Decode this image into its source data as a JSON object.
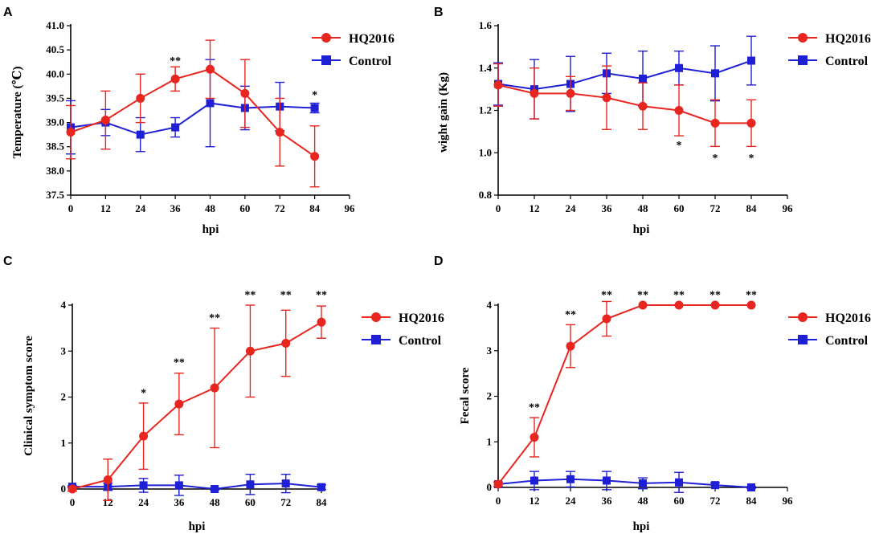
{
  "colors": {
    "hq2016": "#e8251f",
    "control": "#1f1fd6",
    "axis": "#000000"
  },
  "chart_data": [
    {
      "panel": "A",
      "type": "line",
      "title": "",
      "xlabel": "hpi",
      "ylabel": "Temperature (℃)",
      "xlim": [
        0,
        96
      ],
      "ylim": [
        37.5,
        41.0
      ],
      "xticks": [
        "0",
        "12",
        "24",
        "36",
        "48",
        "60",
        "72",
        "84",
        "96"
      ],
      "yticks": [
        "37.5",
        "38.0",
        "38.5",
        "39.0",
        "39.5",
        "40.0",
        "40.5",
        "41.0"
      ],
      "legend": "top-right",
      "series": [
        {
          "name": "HQ2016",
          "marker": "circle",
          "x": [
            0,
            12,
            24,
            36,
            48,
            60,
            72,
            84
          ],
          "values": [
            38.8,
            39.05,
            39.5,
            39.9,
            40.1,
            39.6,
            38.8,
            38.3
          ],
          "error": [
            0.55,
            0.6,
            0.5,
            0.25,
            0.6,
            0.7,
            0.7,
            0.63
          ]
        },
        {
          "name": "Control",
          "marker": "square",
          "x": [
            0,
            12,
            24,
            36,
            48,
            60,
            72,
            84
          ],
          "values": [
            38.9,
            39.0,
            38.75,
            38.9,
            39.4,
            39.3,
            39.33,
            39.3
          ],
          "error": [
            0.55,
            0.27,
            0.35,
            0.2,
            0.9,
            0.45,
            0.5,
            0.1
          ]
        }
      ],
      "annotations": [
        {
          "x": 36,
          "y": 40.2,
          "text": "**"
        },
        {
          "x": 84,
          "y": 39.5,
          "text": "*"
        }
      ]
    },
    {
      "panel": "B",
      "type": "line",
      "title": "",
      "xlabel": "hpi",
      "ylabel": "wight gain (Kg)",
      "xlim": [
        0,
        96
      ],
      "ylim": [
        0.8,
        1.6
      ],
      "xticks": [
        "0",
        "12",
        "24",
        "36",
        "48",
        "60",
        "72",
        "84",
        "96"
      ],
      "yticks": [
        "0.8",
        "1.0",
        "1.2",
        "1.4",
        "1.6"
      ],
      "legend": "top-right",
      "series": [
        {
          "name": "HQ2016",
          "marker": "circle",
          "x": [
            0,
            12,
            24,
            36,
            48,
            60,
            72,
            84
          ],
          "values": [
            1.32,
            1.28,
            1.28,
            1.26,
            1.22,
            1.2,
            1.14,
            1.14
          ],
          "error": [
            0.1,
            0.12,
            0.08,
            0.15,
            0.11,
            0.12,
            0.11,
            0.11
          ]
        },
        {
          "name": "Control",
          "marker": "square",
          "x": [
            0,
            12,
            24,
            36,
            48,
            60,
            72,
            84
          ],
          "values": [
            1.325,
            1.3,
            1.325,
            1.375,
            1.35,
            1.4,
            1.375,
            1.435
          ],
          "error": [
            0.1,
            0.14,
            0.13,
            0.095,
            0.13,
            0.08,
            0.13,
            0.115
          ]
        }
      ],
      "annotations": [
        {
          "x": 60,
          "y": 1.02,
          "text": "*"
        },
        {
          "x": 72,
          "y": 0.96,
          "text": "*"
        },
        {
          "x": 84,
          "y": 0.96,
          "text": "*"
        }
      ]
    },
    {
      "panel": "C",
      "type": "line",
      "title": "",
      "xlabel": "hpi",
      "ylabel": "Clinical symptom score",
      "xlim": [
        0,
        84
      ],
      "ylim": [
        0,
        4
      ],
      "xticks": [
        "0",
        "12",
        "24",
        "36",
        "48",
        "60",
        "72",
        "84"
      ],
      "yticks": [
        "0",
        "1",
        "2",
        "3",
        "4"
      ],
      "legend": "top-right",
      "series": [
        {
          "name": "HQ2016",
          "marker": "circle",
          "x": [
            0,
            12,
            24,
            36,
            48,
            60,
            72,
            84
          ],
          "values": [
            0.0,
            0.2,
            1.15,
            1.85,
            2.2,
            3.0,
            3.17,
            3.63
          ],
          "error": [
            0.05,
            0.45,
            0.72,
            0.67,
            1.3,
            1.0,
            0.72,
            0.35
          ]
        },
        {
          "name": "Control",
          "marker": "square",
          "x": [
            0,
            12,
            24,
            36,
            48,
            60,
            72,
            84
          ],
          "values": [
            0.05,
            0.05,
            0.08,
            0.08,
            0.0,
            0.1,
            0.12,
            0.04
          ],
          "error": [
            0.02,
            0.08,
            0.15,
            0.22,
            0.02,
            0.22,
            0.2,
            0.05
          ]
        }
      ],
      "annotations": [
        {
          "x": 24,
          "y": 2.02,
          "text": "*"
        },
        {
          "x": 36,
          "y": 2.68,
          "text": "**"
        },
        {
          "x": 48,
          "y": 3.65,
          "text": "**"
        },
        {
          "x": 60,
          "y": 4.15,
          "text": "**"
        },
        {
          "x": 72,
          "y": 4.15,
          "text": "**"
        },
        {
          "x": 84,
          "y": 4.15,
          "text": "**"
        }
      ]
    },
    {
      "panel": "D",
      "type": "line",
      "title": "",
      "xlabel": "hpi",
      "ylabel": "Fecal score",
      "xlim": [
        0,
        96
      ],
      "ylim": [
        0,
        4
      ],
      "xticks": [
        "0",
        "12",
        "24",
        "36",
        "48",
        "60",
        "72",
        "84",
        "96"
      ],
      "yticks": [
        "0",
        "1",
        "2",
        "3",
        "4"
      ],
      "legend": "top-right",
      "series": [
        {
          "name": "HQ2016",
          "marker": "circle",
          "x": [
            0,
            12,
            24,
            36,
            48,
            60,
            72,
            84
          ],
          "values": [
            0.07,
            1.1,
            3.1,
            3.7,
            4.0,
            4.0,
            4.0,
            4.0
          ],
          "error": [
            0.05,
            0.43,
            0.47,
            0.38,
            0.0,
            0.0,
            0.0,
            0.0
          ]
        },
        {
          "name": "Control",
          "marker": "square",
          "x": [
            0,
            12,
            24,
            36,
            48,
            60,
            72,
            84
          ],
          "values": [
            0.07,
            0.15,
            0.18,
            0.15,
            0.09,
            0.11,
            0.05,
            0.0
          ],
          "error": [
            0.05,
            0.2,
            0.17,
            0.2,
            0.12,
            0.22,
            0.05,
            0.02
          ]
        }
      ],
      "annotations": [
        {
          "x": 12,
          "y": 1.68,
          "text": "**"
        },
        {
          "x": 24,
          "y": 3.72,
          "text": "**"
        },
        {
          "x": 36,
          "y": 4.15,
          "text": "**"
        },
        {
          "x": 48,
          "y": 4.15,
          "text": "**"
        },
        {
          "x": 60,
          "y": 4.15,
          "text": "**"
        },
        {
          "x": 72,
          "y": 4.15,
          "text": "**"
        },
        {
          "x": 84,
          "y": 4.15,
          "text": "**"
        }
      ]
    }
  ]
}
